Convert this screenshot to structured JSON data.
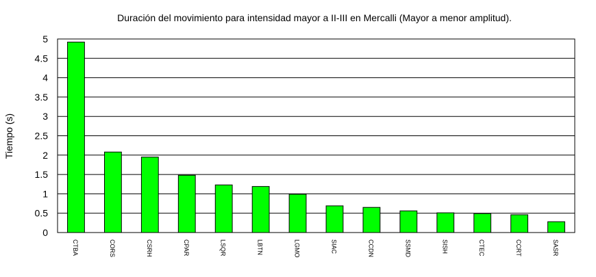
{
  "chart_data": {
    "type": "bar",
    "title": "Duración del movimiento para intensidad mayor a II-III en Mercalli (Mayor a menor amplitud).",
    "xlabel": "",
    "ylabel": "Tiempo (s)",
    "ylim": [
      0,
      5
    ],
    "yticks": [
      "0",
      "0.5",
      "1",
      "1.5",
      "2",
      "2.5",
      "3",
      "3.5",
      "4",
      "4.5",
      "5"
    ],
    "grid": true,
    "categories": [
      "CTBA",
      "CORS",
      "CSRH",
      "CPAR",
      "LSQR",
      "LBTN",
      "LGMO",
      "SIAC",
      "CCDN",
      "SSMD",
      "SISH",
      "CTEC",
      "CCRT",
      "SASR"
    ],
    "values": [
      4.92,
      2.08,
      1.95,
      1.48,
      1.23,
      1.19,
      0.99,
      0.69,
      0.65,
      0.56,
      0.51,
      0.49,
      0.46,
      0.28
    ],
    "bar_color": "#00ff00",
    "bar_edge_color": "#000000"
  }
}
